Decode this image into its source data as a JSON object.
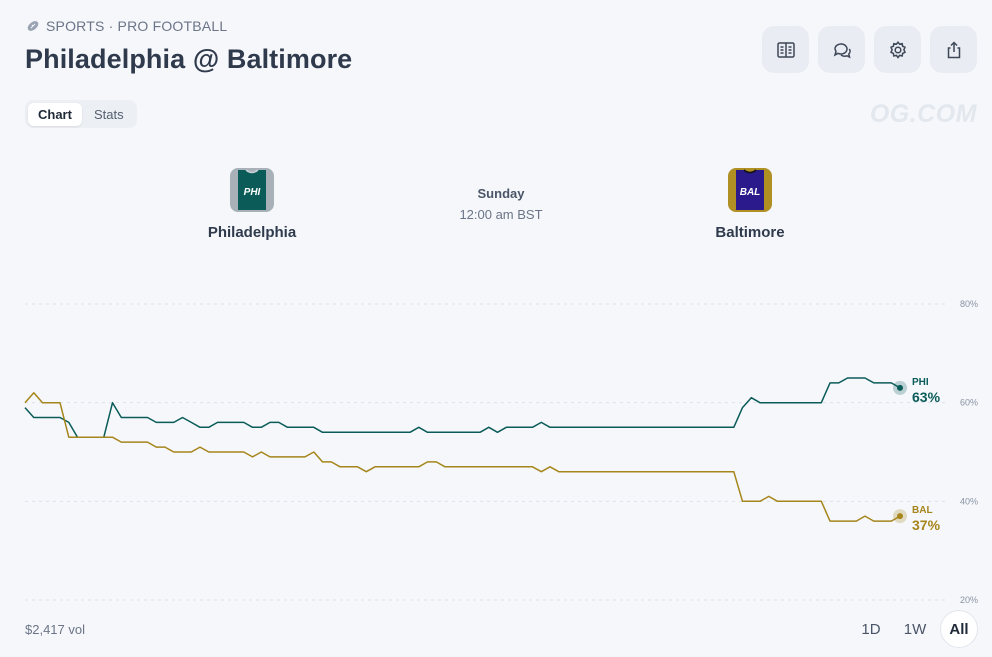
{
  "header": {
    "breadcrumb": "SPORTS · PRO FOOTBALL",
    "title": "Philadelphia @ Baltimore",
    "watermark": "OG.COM"
  },
  "toolbar": [
    {
      "name": "rules-button",
      "icon": "book-icon"
    },
    {
      "name": "comments-button",
      "icon": "chat-icon"
    },
    {
      "name": "settings-button",
      "icon": "gear-icon"
    },
    {
      "name": "share-button",
      "icon": "share-icon"
    }
  ],
  "tabs": [
    {
      "label": "Chart",
      "active": true
    },
    {
      "label": "Stats",
      "active": false
    }
  ],
  "teams": {
    "home": {
      "name": "Philadelphia",
      "abbr": "PHI",
      "color": "#0b5c59"
    },
    "away": {
      "name": "Baltimore",
      "abbr": "BAL",
      "color": "#a6851b"
    }
  },
  "game": {
    "day": "Sunday",
    "time": "12:00 am BST"
  },
  "chart_data": {
    "type": "line",
    "y_ticks": [
      "80%",
      "60%",
      "40%",
      "20%"
    ],
    "ylim": [
      20,
      80
    ],
    "x": [
      0,
      1,
      2,
      3,
      4,
      5,
      6,
      7,
      8,
      9,
      10,
      11,
      12,
      13,
      14,
      15,
      16,
      17,
      18,
      19,
      20,
      21,
      22,
      23,
      24,
      25,
      26,
      27,
      28,
      29,
      30,
      31,
      32,
      33,
      34,
      35,
      36,
      37,
      38,
      39,
      40,
      41,
      42,
      43,
      44,
      45,
      46,
      47,
      48,
      49,
      50,
      51,
      52,
      53,
      54,
      55,
      56,
      57,
      58,
      59,
      60,
      61,
      62,
      63,
      64,
      65,
      66,
      67,
      68,
      69,
      70,
      71,
      72,
      73,
      74,
      75,
      76,
      77,
      78,
      79,
      80,
      81,
      82,
      83,
      84,
      85,
      86,
      87,
      88,
      89,
      90,
      91,
      92,
      93,
      94,
      95,
      96,
      97,
      98,
      99,
      100
    ],
    "grid": true,
    "series": [
      {
        "name": "PHI",
        "color": "#0b5c59",
        "final_label": "63%",
        "values": [
          59,
          57,
          57,
          57,
          57,
          56,
          53,
          53,
          53,
          53,
          60,
          57,
          57,
          57,
          57,
          56,
          56,
          56,
          57,
          56,
          55,
          55,
          56,
          56,
          56,
          56,
          55,
          55,
          56,
          56,
          55,
          55,
          55,
          55,
          54,
          54,
          54,
          54,
          54,
          54,
          54,
          54,
          54,
          54,
          54,
          55,
          54,
          54,
          54,
          54,
          54,
          54,
          54,
          55,
          54,
          55,
          55,
          55,
          55,
          56,
          55,
          55,
          55,
          55,
          55,
          55,
          55,
          55,
          55,
          55,
          55,
          55,
          55,
          55,
          55,
          55,
          55,
          55,
          55,
          55,
          55,
          55,
          59,
          61,
          60,
          60,
          60,
          60,
          60,
          60,
          60,
          60,
          64,
          64,
          65,
          65,
          65,
          64,
          64,
          64,
          63
        ]
      },
      {
        "name": "BAL",
        "color": "#a6851b",
        "final_label": "37%",
        "values": [
          60,
          62,
          60,
          60,
          60,
          53,
          53,
          53,
          53,
          53,
          53,
          52,
          52,
          52,
          52,
          51,
          51,
          50,
          50,
          50,
          51,
          50,
          50,
          50,
          50,
          50,
          49,
          50,
          49,
          49,
          49,
          49,
          49,
          50,
          48,
          48,
          47,
          47,
          47,
          46,
          47,
          47,
          47,
          47,
          47,
          47,
          48,
          48,
          47,
          47,
          47,
          47,
          47,
          47,
          47,
          47,
          47,
          47,
          47,
          46,
          47,
          46,
          46,
          46,
          46,
          46,
          46,
          46,
          46,
          46,
          46,
          46,
          46,
          46,
          46,
          46,
          46,
          46,
          46,
          46,
          46,
          46,
          40,
          40,
          40,
          41,
          40,
          40,
          40,
          40,
          40,
          40,
          36,
          36,
          36,
          36,
          37,
          36,
          36,
          36,
          37
        ]
      }
    ]
  },
  "footer": {
    "volume": "$2,417 vol",
    "ranges": [
      {
        "label": "1D",
        "active": false
      },
      {
        "label": "1W",
        "active": false
      },
      {
        "label": "All",
        "active": true
      }
    ]
  }
}
